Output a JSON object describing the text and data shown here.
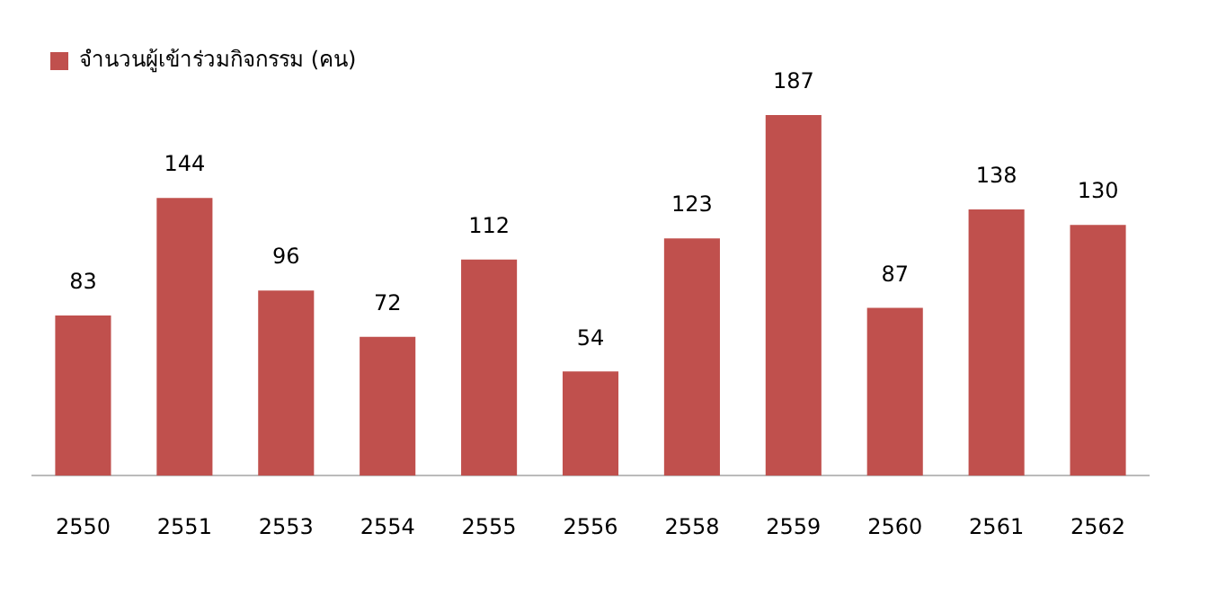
{
  "chart_data": {
    "type": "bar",
    "categories": [
      "2550",
      "2551",
      "2553",
      "2554",
      "2555",
      "2556",
      "2558",
      "2559",
      "2560",
      "2561",
      "2562"
    ],
    "series": [
      {
        "name": "จำนวนผู้เข้าร่วมกิจกรรม (คน)",
        "color": "#c0504d",
        "values": [
          83,
          144,
          96,
          72,
          112,
          54,
          123,
          187,
          87,
          138,
          130
        ]
      }
    ],
    "data_labels": true,
    "legend": "top left",
    "grid": false,
    "tick_labels": "x"
  }
}
